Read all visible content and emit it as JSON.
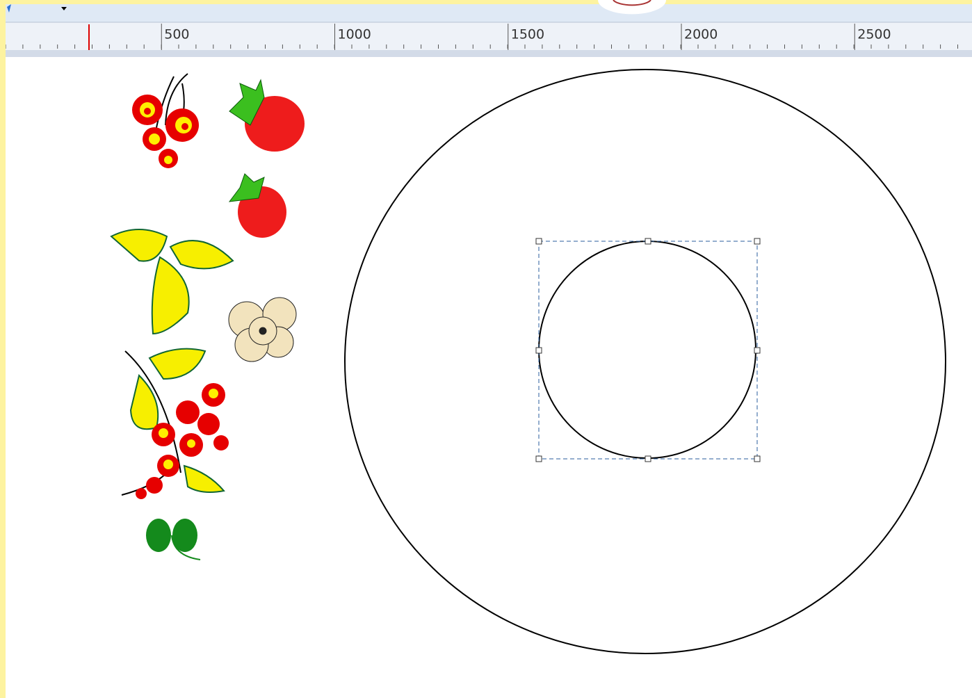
{
  "ruler": {
    "labels": [
      500,
      1000,
      1500,
      2000,
      2500
    ]
  }
}
